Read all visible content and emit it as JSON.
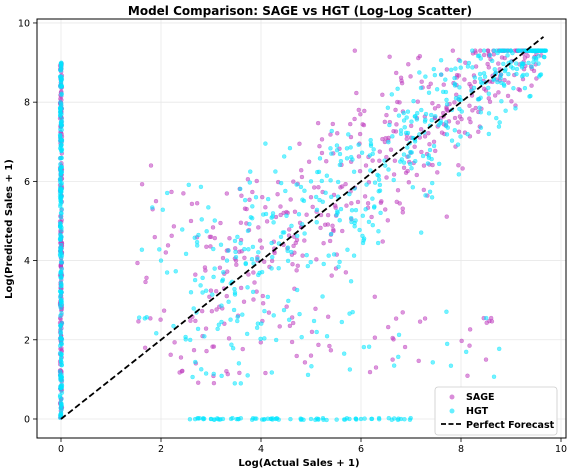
{
  "chart_data": {
    "type": "scatter",
    "title": "Model Comparison: SAGE vs HGT (Log-Log Scatter)",
    "xlabel": "Log(Actual Sales + 1)",
    "ylabel": "Log(Predicted Sales + 1)",
    "xlim": [
      -0.48,
      10.1
    ],
    "ylim": [
      -0.48,
      10.1
    ],
    "x_ticks": [
      0,
      2,
      4,
      6,
      8,
      10
    ],
    "y_ticks": [
      0,
      2,
      4,
      6,
      8,
      10
    ],
    "grid": true,
    "legend_position": "lower-right",
    "series": [
      {
        "name": "SAGE",
        "color": "#bf40bf",
        "marker": "circle",
        "sample_points": [
          [
            0,
            8.6
          ],
          [
            0,
            6.9
          ],
          [
            0,
            4.6
          ],
          [
            0,
            2.1
          ],
          [
            0,
            1.0
          ],
          [
            0,
            0.3
          ],
          [
            1.8,
            6.4
          ],
          [
            1.9,
            5.5
          ],
          [
            2.6,
            5.0
          ],
          [
            3.0,
            4.6
          ],
          [
            3.5,
            4.0
          ],
          [
            4.3,
            5.1
          ],
          [
            5.0,
            5.6
          ],
          [
            5.5,
            3.8
          ],
          [
            6.1,
            6.4
          ],
          [
            6.6,
            6.8
          ],
          [
            7.0,
            7.1
          ],
          [
            7.6,
            7.6
          ],
          [
            8.2,
            8.4
          ],
          [
            8.8,
            8.7
          ],
          [
            9.4,
            8.9
          ],
          [
            5.0,
            1.6
          ],
          [
            8.5,
            1.5
          ],
          [
            6.3,
            1.3
          ]
        ]
      },
      {
        "name": "HGT",
        "color": "#00e5ff",
        "marker": "circle",
        "sample_points": [
          [
            0,
            8.9
          ],
          [
            0,
            7.5
          ],
          [
            0,
            5.2
          ],
          [
            0,
            3.0
          ],
          [
            0,
            1.5
          ],
          [
            0,
            0.1
          ],
          [
            2.0,
            4.0
          ],
          [
            2.6,
            3.2
          ],
          [
            3.2,
            4.4
          ],
          [
            3.9,
            5.6
          ],
          [
            4.4,
            4.6
          ],
          [
            5.0,
            6.0
          ],
          [
            5.6,
            5.3
          ],
          [
            6.2,
            6.9
          ],
          [
            6.8,
            7.2
          ],
          [
            7.3,
            7.7
          ],
          [
            7.9,
            8.1
          ],
          [
            8.4,
            8.5
          ],
          [
            9.0,
            8.9
          ],
          [
            9.6,
            8.7
          ],
          [
            3.0,
            0.0
          ],
          [
            4.2,
            0.0
          ],
          [
            5.0,
            0.0
          ],
          [
            6.0,
            0.0
          ],
          [
            6.8,
            0.0
          ]
        ]
      },
      {
        "name": "Perfect Forecast",
        "color": "#000000",
        "style": "dashed-line",
        "x": [
          0,
          9.65
        ],
        "y": [
          0,
          9.65
        ]
      }
    ]
  }
}
